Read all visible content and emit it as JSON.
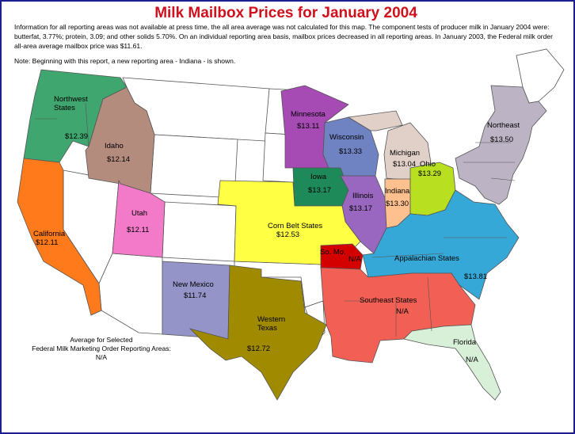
{
  "title": "Milk Mailbox Prices for January 2004",
  "intro": "Information for all reporting areas was not available at press time, the all area average was not calculated for this map.  The component tests of producer milk in January 2004 were: butterfat, 3.77%; protein, 3.09; and other solids 5.70%. On an individual reporting area basis, mailbox prices decreased in all reporting areas.  In January 2003, the Federal milk order all-area average mailbox price was $11.61.",
  "note": "Note: Beginning with this report, a new reporting area - Indiana - is shown.",
  "average": {
    "line1": "Average for Selected",
    "line2": "Federal Milk Marketing Order Reporting Areas:",
    "value": "N/A"
  },
  "colors": {
    "frame": "#1b1f8f",
    "title": "#d0101c",
    "northwest": "#3fa66f",
    "idaho": "#b48c7e",
    "california": "#ff7a1a",
    "utah": "#f27ac8",
    "new_mexico": "#9494c8",
    "western_texas": "#a08a00",
    "minnesota": "#a64ab4",
    "wisconsin": "#6f82c2",
    "iowa": "#1e8a5a",
    "illinois": "#9966c0",
    "michigan": "#e0d0c8",
    "indiana": "#ffc090",
    "ohio": "#b8e020",
    "corn_belt": "#ffff44",
    "so_mo": "#d40000",
    "appalachian": "#36a8d8",
    "southeast": "#f26055",
    "florida": "#d8f0d8",
    "northeast": "#bcb4c4",
    "unreported": "#ffffff"
  },
  "areas": [
    {
      "key": "northwest",
      "name": "Northwest\nStates",
      "price": "$12.39"
    },
    {
      "key": "idaho",
      "name": "Idaho",
      "price": "$12.14"
    },
    {
      "key": "california",
      "name": "California",
      "price": "$12.11"
    },
    {
      "key": "utah",
      "name": "Utah",
      "price": "$12.11"
    },
    {
      "key": "new_mexico",
      "name": "New Mexico",
      "price": "$11.74"
    },
    {
      "key": "western_texas",
      "name": "Western\nTexas",
      "price": "$12.72"
    },
    {
      "key": "minnesota",
      "name": "Minnesota",
      "price": "$13.11"
    },
    {
      "key": "wisconsin",
      "name": "Wisconsin",
      "price": "$13.33"
    },
    {
      "key": "iowa",
      "name": "Iowa",
      "price": "$13.17"
    },
    {
      "key": "illinois",
      "name": "Illinois",
      "price": "$13.17"
    },
    {
      "key": "michigan",
      "name": "Michigan",
      "price": "$13.04"
    },
    {
      "key": "indiana",
      "name": "Indiana",
      "price": "$13.30"
    },
    {
      "key": "ohio",
      "name": "Ohio",
      "price": "$13.29"
    },
    {
      "key": "corn_belt",
      "name": "Corn Belt States",
      "price": "$12.53"
    },
    {
      "key": "so_mo",
      "name": "So. Mo.",
      "price": "N/A"
    },
    {
      "key": "appalachian",
      "name": "Appalachian States",
      "price": "$13.81"
    },
    {
      "key": "southeast",
      "name": "Southeast States",
      "price": "N/A"
    },
    {
      "key": "florida",
      "name": "Florida",
      "price": "N/A"
    },
    {
      "key": "northeast",
      "name": "Northeast",
      "price": "$13.50"
    }
  ]
}
